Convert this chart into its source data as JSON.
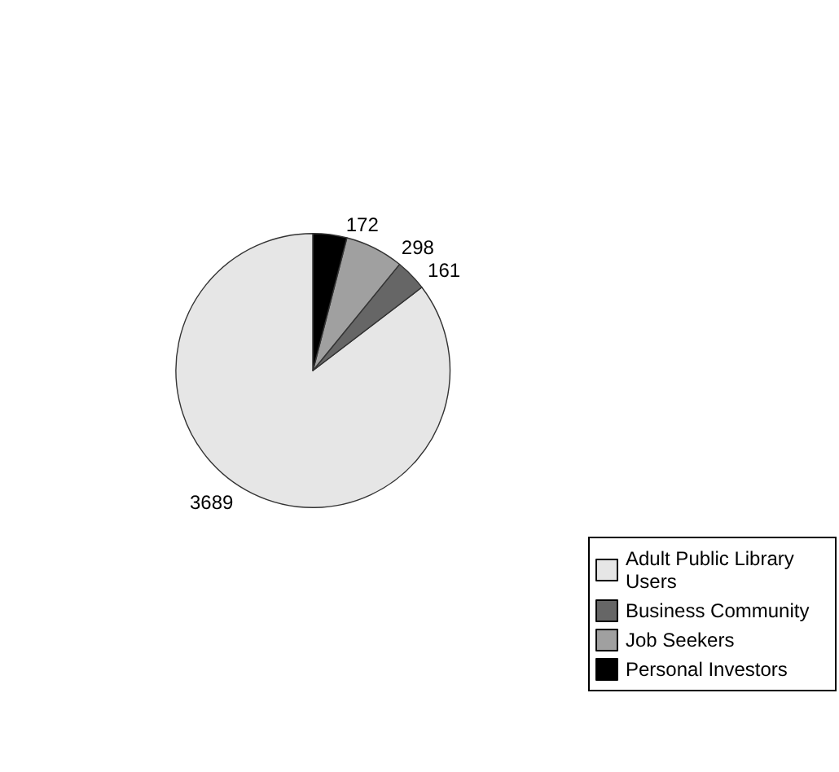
{
  "chart_data": {
    "type": "pie",
    "categories": [
      "Adult Public Library Users",
      "Business Community",
      "Job Seekers",
      "Personal Investors"
    ],
    "values": [
      3689,
      161,
      298,
      172
    ],
    "colors": [
      "#e6e6e6",
      "#666666",
      "#a0a0a0",
      "#000000"
    ],
    "data_labels": true,
    "legend": "bottom right"
  }
}
